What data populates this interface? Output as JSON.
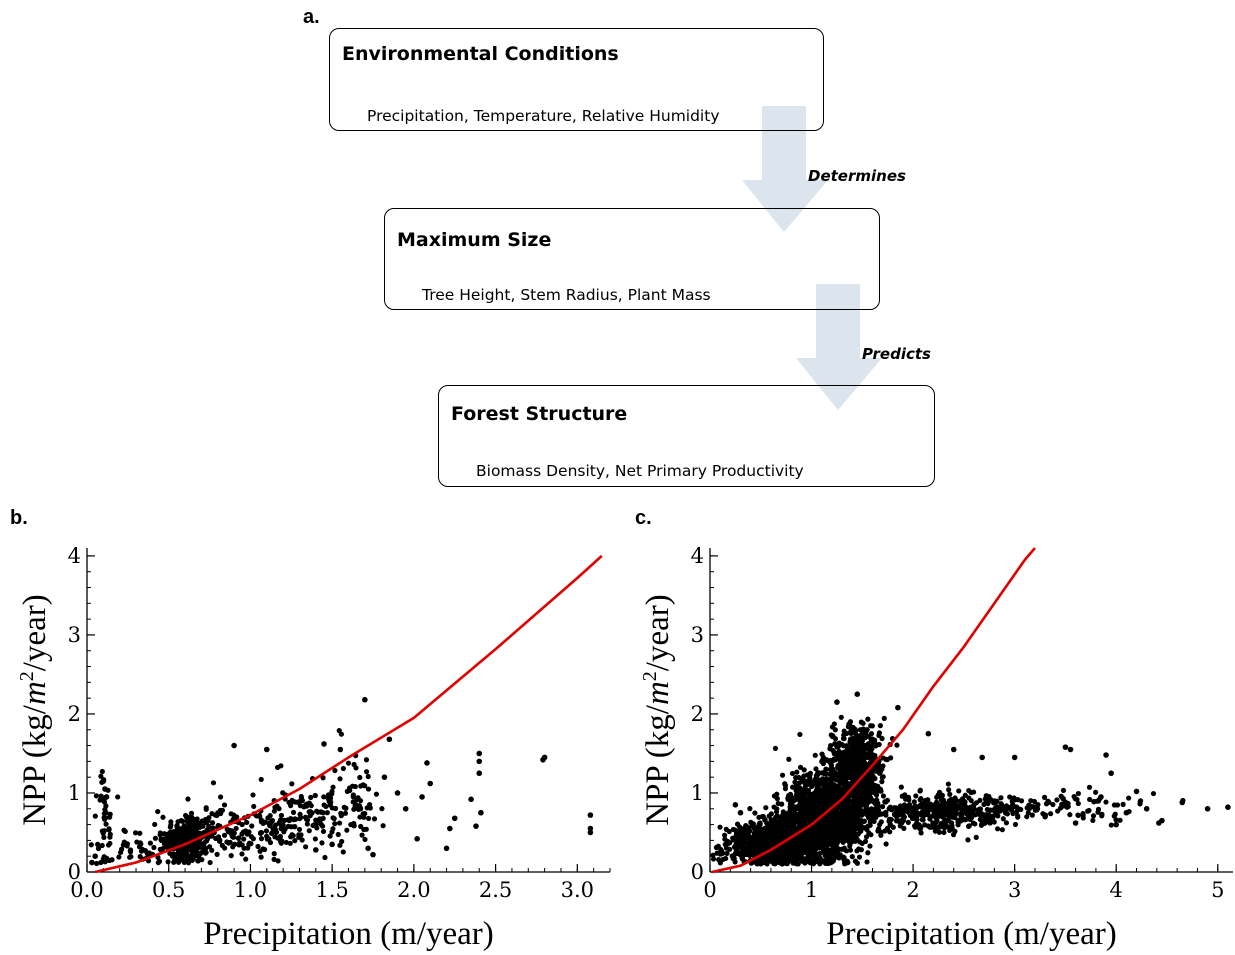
{
  "flow": {
    "panel_label": "a.",
    "boxes": [
      {
        "title": "Environmental Conditions",
        "subtitle": "Precipitation, Temperature, Relative Humidity"
      },
      {
        "title": "Maximum Size",
        "subtitle": "Tree Height, Stem Radius, Plant Mass"
      },
      {
        "title": "Forest Structure",
        "subtitle": "Biomass Density, Net Primary Productivity"
      }
    ],
    "arrows": [
      {
        "label": "Determines"
      },
      {
        "label": "Predicts"
      }
    ],
    "arrow_color": "#dce4ee"
  },
  "chart_data": [
    {
      "panel_label": "b.",
      "type": "scatter",
      "xlabel": "Precipitation (m/year)",
      "ylabel": "NPP (kg/m²/year)",
      "ylabel_parts": {
        "prefix": "NPP (kg/",
        "italic": "m",
        "sup": "2",
        "suffix": "/year)"
      },
      "xlim": [
        0,
        3.2
      ],
      "ylim": [
        0,
        4.1
      ],
      "xticks": [
        "0.0",
        "0.5",
        "1.0",
        "1.5",
        "2.0",
        "2.5",
        "3.0"
      ],
      "yticks": [
        "0",
        "1",
        "2",
        "3",
        "4"
      ],
      "point_color": "#000000",
      "curve_color": "#e00000",
      "curve": {
        "x": [
          0.05,
          0.3,
          0.6,
          1.0,
          1.3,
          1.6,
          2.0,
          2.5,
          3.0,
          3.15
        ],
        "y": [
          0.0,
          0.12,
          0.35,
          0.72,
          1.05,
          1.45,
          1.95,
          2.82,
          3.72,
          4.0
        ]
      },
      "clusters": [
        {
          "cx": 0.62,
          "cy": 0.42,
          "sx": 0.08,
          "sy": 0.16,
          "n": 320
        },
        {
          "cx": 0.95,
          "cy": 0.5,
          "sx": 0.18,
          "sy": 0.18,
          "n": 130
        },
        {
          "cx": 1.3,
          "cy": 0.72,
          "sx": 0.17,
          "sy": 0.22,
          "n": 120
        },
        {
          "cx": 1.62,
          "cy": 0.9,
          "sx": 0.1,
          "sy": 0.28,
          "n": 70
        },
        {
          "cx": 0.11,
          "cy": 0.55,
          "sx": 0.025,
          "sy": 0.25,
          "n": 45
        },
        {
          "cx": 0.3,
          "cy": 0.3,
          "sx": 0.1,
          "sy": 0.1,
          "n": 40
        }
      ],
      "points": [
        [
          0.03,
          0.12
        ],
        [
          0.05,
          0.2
        ],
        [
          0.1,
          1.15
        ],
        [
          0.11,
          1.05
        ],
        [
          0.12,
          0.95
        ],
        [
          0.9,
          1.6
        ],
        [
          1.1,
          1.55
        ],
        [
          1.45,
          1.62
        ],
        [
          1.55,
          1.55
        ],
        [
          1.7,
          2.18
        ],
        [
          1.82,
          1.2
        ],
        [
          1.85,
          1.68
        ],
        [
          2.02,
          0.42
        ],
        [
          2.05,
          0.95
        ],
        [
          2.08,
          1.38
        ],
        [
          2.1,
          1.12
        ],
        [
          2.2,
          0.3
        ],
        [
          2.22,
          0.55
        ],
        [
          2.25,
          0.68
        ],
        [
          2.35,
          0.92
        ],
        [
          2.38,
          0.58
        ],
        [
          2.4,
          1.25
        ],
        [
          2.4,
          1.4
        ],
        [
          2.4,
          1.5
        ],
        [
          2.41,
          0.75
        ],
        [
          2.79,
          1.42
        ],
        [
          2.8,
          1.45
        ],
        [
          3.08,
          0.5
        ],
        [
          3.08,
          0.55
        ],
        [
          3.08,
          0.72
        ],
        [
          1.72,
          0.3
        ],
        [
          1.75,
          0.22
        ],
        [
          1.9,
          1.0
        ],
        [
          1.95,
          0.8
        ],
        [
          1.5,
          0.35
        ],
        [
          1.4,
          0.28
        ]
      ]
    },
    {
      "panel_label": "c.",
      "type": "scatter",
      "xlabel": "Precipitation (m/year)",
      "ylabel": "NPP (kg/m²/year)",
      "ylabel_parts": {
        "prefix": "NPP (kg/",
        "italic": "m",
        "sup": "2",
        "suffix": "/year)"
      },
      "xlim": [
        0,
        5.15
      ],
      "ylim": [
        0,
        4.1
      ],
      "xticks": [
        "0",
        "1",
        "2",
        "3",
        "4",
        "5"
      ],
      "yticks": [
        "0",
        "1",
        "2",
        "3",
        "4"
      ],
      "point_color": "#000000",
      "curve_color": "#e00000",
      "curve": {
        "x": [
          0.02,
          0.3,
          0.6,
          1.0,
          1.3,
          1.6,
          1.9,
          2.2,
          2.5,
          2.8,
          3.1,
          3.2
        ],
        "y": [
          0.0,
          0.08,
          0.28,
          0.6,
          0.92,
          1.35,
          1.8,
          2.35,
          2.85,
          3.4,
          3.95,
          4.1
        ]
      },
      "clusters": [
        {
          "cx": 0.6,
          "cy": 0.35,
          "sx": 0.22,
          "sy": 0.15,
          "n": 800
        },
        {
          "cx": 1.1,
          "cy": 0.65,
          "sx": 0.2,
          "sy": 0.28,
          "n": 1100
        },
        {
          "cx": 1.45,
          "cy": 1.42,
          "sx": 0.13,
          "sy": 0.22,
          "n": 400
        },
        {
          "cx": 1.4,
          "cy": 0.95,
          "sx": 0.15,
          "sy": 0.3,
          "n": 450
        },
        {
          "cx": 2.2,
          "cy": 0.75,
          "sx": 0.3,
          "sy": 0.12,
          "n": 300
        },
        {
          "cx": 2.8,
          "cy": 0.8,
          "sx": 0.35,
          "sy": 0.1,
          "n": 160
        },
        {
          "cx": 3.7,
          "cy": 0.8,
          "sx": 0.35,
          "sy": 0.1,
          "n": 60
        }
      ],
      "points": [
        [
          1.25,
          2.15
        ],
        [
          1.45,
          2.25
        ],
        [
          1.85,
          2.08
        ],
        [
          2.15,
          1.75
        ],
        [
          2.4,
          1.55
        ],
        [
          2.68,
          1.45
        ],
        [
          3.0,
          1.45
        ],
        [
          3.5,
          1.58
        ],
        [
          3.55,
          1.55
        ],
        [
          3.9,
          1.48
        ],
        [
          3.95,
          1.25
        ],
        [
          4.2,
          1.02
        ],
        [
          4.42,
          0.62
        ],
        [
          4.45,
          0.65
        ],
        [
          4.65,
          0.88
        ],
        [
          4.9,
          0.8
        ],
        [
          5.1,
          0.82
        ],
        [
          0.25,
          0.85
        ],
        [
          0.3,
          0.75
        ],
        [
          4.0,
          0.6
        ],
        [
          4.1,
          0.75
        ],
        [
          3.6,
          0.62
        ],
        [
          3.3,
          0.7
        ],
        [
          4.3,
          0.8
        ],
        [
          3.85,
          0.95
        ]
      ]
    }
  ]
}
